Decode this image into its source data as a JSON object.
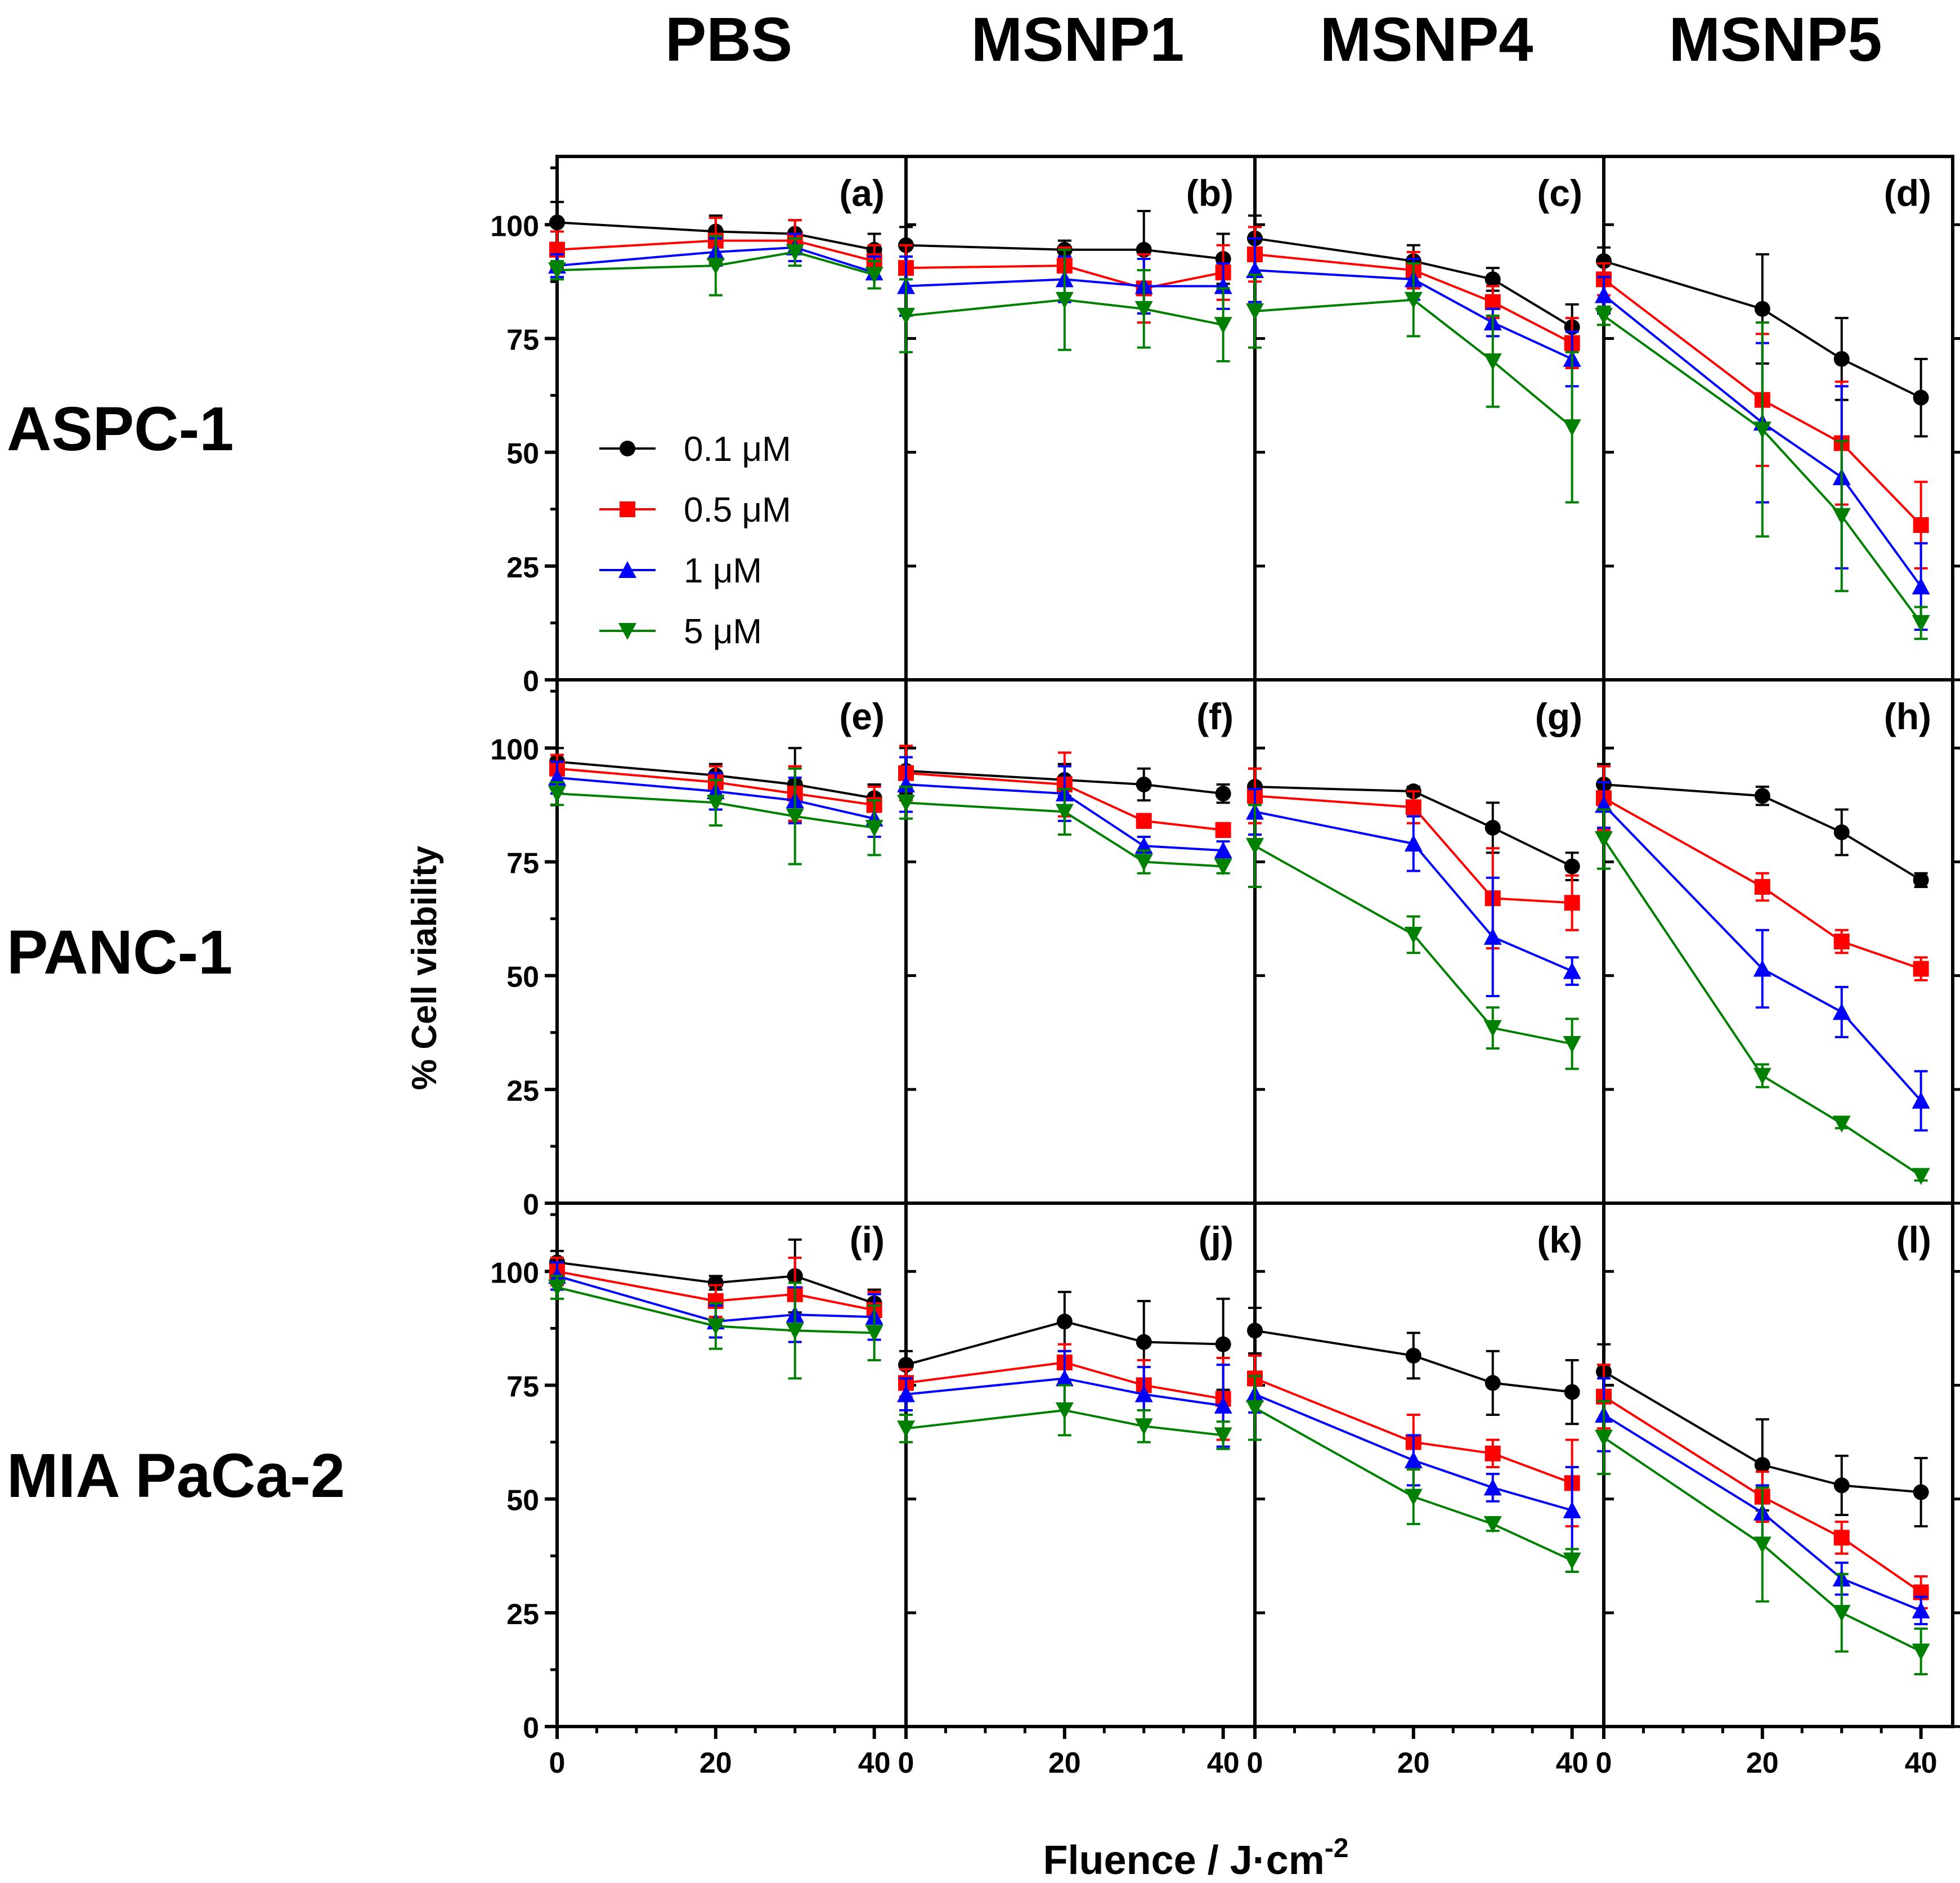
{
  "figure": {
    "column_titles": [
      "PBS",
      "MSNP1",
      "MSNP4",
      "MSNP5"
    ],
    "row_titles": [
      "ASPC-1",
      "PANC-1",
      "MIA PaCa-2"
    ],
    "ylabel": "% Cell viability",
    "xlabel_main": "Fluence / J·cm",
    "xlabel_sup": "-2",
    "legend_unit": "μM"
  },
  "legend": {
    "items": [
      {
        "label": "0.1 μM",
        "color": "#000000",
        "marker": "circle"
      },
      {
        "label": "0.5 μM",
        "color": "#ff0000",
        "marker": "square"
      },
      {
        "label": "1 μM",
        "color": "#0000ff",
        "marker": "triangle-up"
      },
      {
        "label": "5 μM",
        "color": "#008000",
        "marker": "triangle-down"
      }
    ]
  },
  "chart_data": {
    "type": "line",
    "title": "",
    "xlabel": "Fluence / J·cm-2",
    "ylabel": "% Cell viability",
    "x": [
      0,
      20,
      30,
      40
    ],
    "xlim": [
      0,
      44
    ],
    "ylim": [
      0,
      115
    ],
    "x_ticks": [
      0,
      20,
      40
    ],
    "y_ticks": [
      0,
      25,
      50,
      75,
      100
    ],
    "series_names": [
      "0.1 μM",
      "0.5 μM",
      "1 μM",
      "5 μM"
    ],
    "series_colors": [
      "#000000",
      "#ff0000",
      "#0000ff",
      "#008000"
    ],
    "series_markers": [
      "circle",
      "square",
      "triangle-up",
      "triangle-down"
    ],
    "panels": [
      {
        "label": "(a)",
        "row": "ASPC-1",
        "col": "PBS",
        "series": [
          {
            "name": "0.1 μM",
            "values": [
              100.5,
              98.5,
              98,
              94.5
            ],
            "errors": [
              4.5,
              3.5,
              3,
              3.5
            ]
          },
          {
            "name": "0.5 μM",
            "values": [
              94.5,
              96.5,
              96.5,
              92
            ],
            "errors": [
              4,
              5,
              4.5,
              3.5
            ]
          },
          {
            "name": "1 μM",
            "values": [
              91,
              94,
              95,
              89.5
            ],
            "errors": [
              2.5,
              3,
              3,
              3.5
            ]
          },
          {
            "name": "5 μM",
            "values": [
              90,
              91,
              94,
              89
            ],
            "errors": [
              2,
              6.5,
              3,
              3
            ]
          }
        ]
      },
      {
        "label": "(b)",
        "row": "ASPC-1",
        "col": "MSNP1",
        "series": [
          {
            "name": "0.1 μM",
            "values": [
              95.5,
              94.5,
              94.5,
              92.5
            ],
            "errors": [
              4,
              2,
              8.5,
              5.5
            ]
          },
          {
            "name": "0.5 μM",
            "values": [
              90.5,
              91,
              86,
              89.5
            ],
            "errors": [
              5,
              4,
              7.5,
              6
            ]
          },
          {
            "name": "1 μM",
            "values": [
              86.5,
              88,
              86.5,
              86.5
            ],
            "errors": [
              6.5,
              5,
              6,
              5
            ]
          },
          {
            "name": "5 μM",
            "values": [
              80,
              83.5,
              81.5,
              78
            ],
            "errors": [
              8,
              11,
              8.5,
              8
            ]
          }
        ]
      },
      {
        "label": "(c)",
        "row": "ASPC-1",
        "col": "MSNP4",
        "series": [
          {
            "name": "0.1 μM",
            "values": [
              97,
              92,
              88,
              77.5
            ],
            "errors": [
              5,
              3.5,
              2.5,
              5
            ]
          },
          {
            "name": "0.5 μM",
            "values": [
              93.5,
              90,
              83,
              74
            ],
            "errors": [
              6,
              4,
              3.5,
              5.5
            ]
          },
          {
            "name": "1 μM",
            "values": [
              90,
              88,
              78.5,
              70.5
            ],
            "errors": [
              7,
              4.5,
              3,
              6
            ]
          },
          {
            "name": "5 μM",
            "values": [
              81,
              83.5,
              70,
              55.5
            ],
            "errors": [
              8,
              8,
              10,
              16.5
            ]
          }
        ]
      },
      {
        "label": "(d)",
        "row": "ASPC-1",
        "col": "MSNP5",
        "series": [
          {
            "name": "0.1 μM",
            "values": [
              92,
              81.5,
              70.5,
              62
            ],
            "errors": [
              3,
              12,
              9,
              8.5
            ]
          },
          {
            "name": "0.5 μM",
            "values": [
              88,
              61.5,
              52,
              34
            ],
            "errors": [
              3.5,
              14.5,
              13.5,
              9.5
            ]
          },
          {
            "name": "1 μM",
            "values": [
              84.5,
              56.5,
              44.5,
              20.5
            ],
            "errors": [
              4,
              17.5,
              20,
              9.5
            ]
          },
          {
            "name": "5 μM",
            "values": [
              80,
              55,
              36,
              12.5
            ],
            "errors": [
              2,
              23.5,
              16.5,
              3.5
            ]
          }
        ]
      },
      {
        "label": "(e)",
        "row": "PANC-1",
        "col": "PBS",
        "series": [
          {
            "name": "0.1 μM",
            "values": [
              97,
              94,
              92,
              89
            ],
            "errors": [
              3,
              2.5,
              8,
              3
            ]
          },
          {
            "name": "0.5 μM",
            "values": [
              95.5,
              92.5,
              90,
              87.5
            ],
            "errors": [
              3,
              3.5,
              6,
              4
            ]
          },
          {
            "name": "1 μM",
            "values": [
              93.5,
              90.5,
              88.5,
              84.5
            ],
            "errors": [
              3.5,
              4,
              5,
              4
            ]
          },
          {
            "name": "5 μM",
            "values": [
              90,
              88,
              85,
              82.5
            ],
            "errors": [
              2.5,
              5,
              10.5,
              6
            ]
          }
        ]
      },
      {
        "label": "(f)",
        "row": "PANC-1",
        "col": "MSNP1",
        "series": [
          {
            "name": "0.1 μM",
            "values": [
              95,
              93,
              92,
              90
            ],
            "errors": [
              5,
              3.5,
              3.5,
              2
            ]
          },
          {
            "name": "0.5 μM",
            "values": [
              94.5,
              92,
              84,
              82
            ],
            "errors": [
              6,
              7,
              1.5,
              1.5
            ]
          },
          {
            "name": "1 μM",
            "values": [
              92,
              90,
              78.5,
              77.5
            ],
            "errors": [
              6,
              6,
              2,
              2
            ]
          },
          {
            "name": "5 μM",
            "values": [
              88,
              86,
              75,
              74
            ],
            "errors": [
              3.5,
              5,
              2.5,
              1.5
            ]
          }
        ]
      },
      {
        "label": "(g)",
        "row": "PANC-1",
        "col": "MSNP4",
        "series": [
          {
            "name": "0.1 μM",
            "values": [
              91.5,
              90.5,
              82.5,
              74
            ],
            "errors": [
              4,
              1,
              5.5,
              3
            ]
          },
          {
            "name": "0.5 μM",
            "values": [
              89.5,
              87,
              67,
              66
            ],
            "errors": [
              6,
              3.5,
              11,
              6
            ]
          },
          {
            "name": "1 μM",
            "values": [
              86,
              79,
              58.5,
              51
            ],
            "errors": [
              5,
              6,
              13,
              3
            ]
          },
          {
            "name": "5 μM",
            "values": [
              78.5,
              59,
              38.5,
              35
            ],
            "errors": [
              9,
              4,
              4.5,
              5.5
            ]
          }
        ]
      },
      {
        "label": "(h)",
        "row": "PANC-1",
        "col": "MSNP5",
        "series": [
          {
            "name": "0.1 μM",
            "values": [
              92,
              89.5,
              81.5,
              71
            ],
            "errors": [
              4.5,
              2,
              5,
              1.5
            ]
          },
          {
            "name": "0.5 μM",
            "values": [
              89,
              69.5,
              57.5,
              51.5
            ],
            "errors": [
              7,
              3,
              2.5,
              2.5
            ]
          },
          {
            "name": "1 μM",
            "values": [
              87.5,
              51.5,
              42,
              22.5
            ],
            "errors": [
              5,
              8.5,
              5.5,
              6.5
            ]
          },
          {
            "name": "5 μM",
            "values": [
              80,
              28,
              17.5,
              6
            ],
            "errors": [
              6.5,
              2.5,
              1,
              1
            ]
          }
        ]
      },
      {
        "label": "(i)",
        "row": "MIA PaCa-2",
        "col": "PBS",
        "series": [
          {
            "name": "0.1 μM",
            "values": [
              102,
              97.5,
              99,
              93
            ],
            "errors": [
              2.5,
              1.5,
              8,
              3
            ]
          },
          {
            "name": "0.5 μM",
            "values": [
              100,
              93.5,
              95,
              91.5
            ],
            "errors": [
              3,
              3.5,
              8,
              4
            ]
          },
          {
            "name": "1 μM",
            "values": [
              99,
              89,
              90.5,
              90
            ],
            "errors": [
              3,
              3.5,
              6,
              5
            ]
          },
          {
            "name": "5 μM",
            "values": [
              96.5,
              88,
              87,
              86.5
            ],
            "errors": [
              2.5,
              5,
              10.5,
              6
            ]
          }
        ]
      },
      {
        "label": "(j)",
        "row": "MIA PaCa-2",
        "col": "MSNP1",
        "series": [
          {
            "name": "0.1 μM",
            "values": [
              79.5,
              89,
              84.5,
              84
            ],
            "errors": [
              3,
              6.5,
              9,
              10
            ]
          },
          {
            "name": "0.5 μM",
            "values": [
              75.5,
              80,
              75,
              72
            ],
            "errors": [
              3,
              4,
              5.5,
              9
            ]
          },
          {
            "name": "1 μM",
            "values": [
              73,
              76.5,
              73,
              70.5
            ],
            "errors": [
              3.5,
              6,
              6,
              9
            ]
          },
          {
            "name": "5 μM",
            "values": [
              65.5,
              69.5,
              66,
              64
            ],
            "errors": [
              3,
              5.5,
              3.5,
              3
            ]
          }
        ]
      },
      {
        "label": "(k)",
        "row": "MIA PaCa-2",
        "col": "MSNP4",
        "series": [
          {
            "name": "0.1 μM",
            "values": [
              87,
              81.5,
              75.5,
              73.5
            ],
            "errors": [
              5,
              5,
              7,
              7
            ]
          },
          {
            "name": "0.5 μM",
            "values": [
              76.5,
              62.5,
              60,
              53.5
            ],
            "errors": [
              5,
              6,
              3,
              9.5
            ]
          },
          {
            "name": "1 μM",
            "values": [
              73,
              58.5,
              52.5,
              47.5
            ],
            "errors": [
              4,
              5.5,
              3,
              9.5
            ]
          },
          {
            "name": "5 μM",
            "values": [
              70,
              50.5,
              44.5,
              36.5
            ],
            "errors": [
              7,
              6,
              1.5,
              2.5
            ]
          }
        ]
      },
      {
        "label": "(l)",
        "row": "MIA PaCa-2",
        "col": "MSNP5",
        "series": [
          {
            "name": "0.1 μM",
            "values": [
              78,
              57.5,
              53,
              51.5
            ],
            "errors": [
              6,
              10,
              6.5,
              7.5
            ]
          },
          {
            "name": "0.5 μM",
            "values": [
              72.5,
              50.5,
              41.5,
              29.5
            ],
            "errors": [
              7,
              5.5,
              3.5,
              3.5
            ]
          },
          {
            "name": "1 μM",
            "values": [
              68.5,
              47,
              32.5,
              25.5
            ],
            "errors": [
              8,
              6,
              3.5,
              3
            ]
          },
          {
            "name": "5 μM",
            "values": [
              63.5,
              40,
              25,
              16.5
            ],
            "errors": [
              8,
              12.5,
              8.5,
              5
            ]
          }
        ]
      }
    ]
  }
}
